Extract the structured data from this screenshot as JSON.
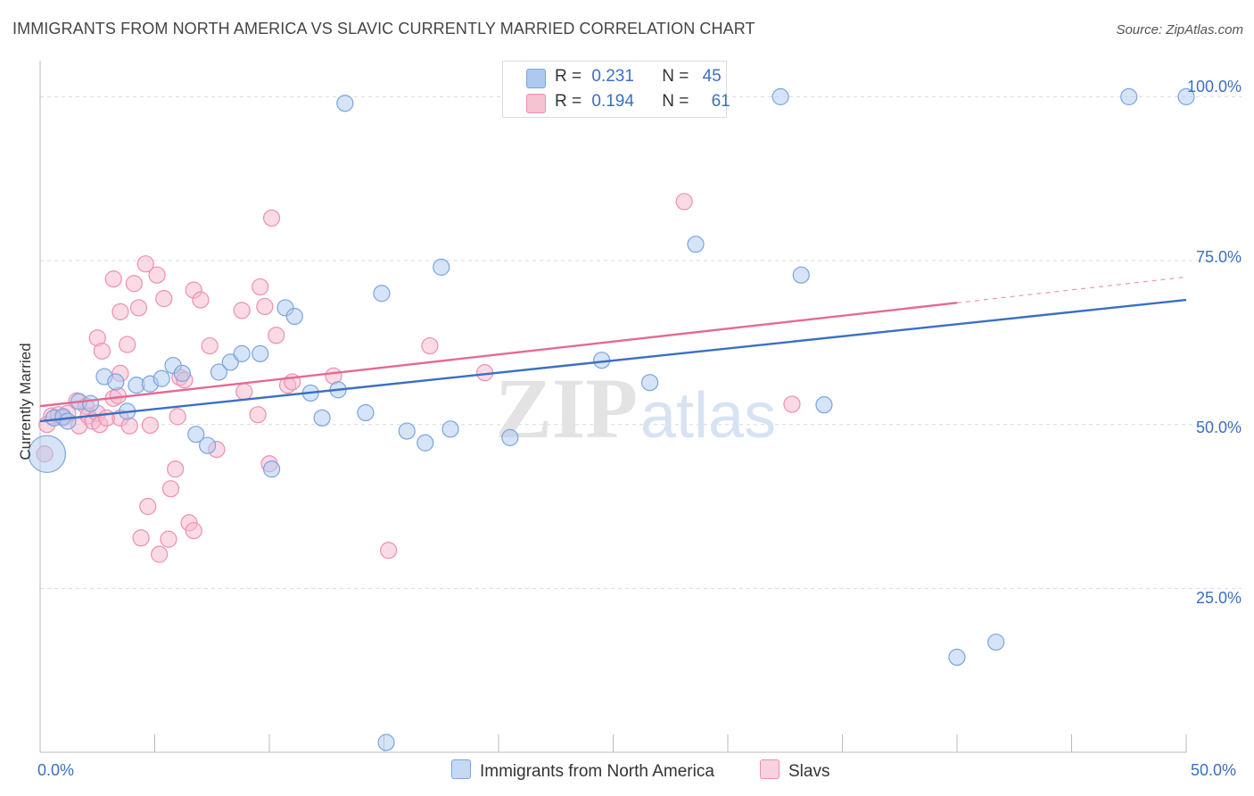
{
  "title": "IMMIGRANTS FROM NORTH AMERICA VS SLAVIC CURRENTLY MARRIED CORRELATION CHART",
  "source": "Source: ZipAtlas.com",
  "watermark": {
    "zip": "ZIP",
    "atlas": "atlas"
  },
  "legend_top": {
    "r_label": "R =",
    "n_label": "N =",
    "blue": {
      "r": "0.231",
      "n": "45"
    },
    "pink": {
      "r": "0.194",
      "n": "61"
    }
  },
  "legend_bottom": {
    "blue": "Immigrants from North America",
    "pink": "Slavs"
  },
  "colors": {
    "blue_fill": "#aec9f0",
    "blue_stroke": "#7aa3e0",
    "blue_line": "#3a6fc4",
    "pink_fill": "#f6b8cb",
    "pink_stroke": "#ee8fae",
    "pink_line": "#e46a95",
    "grid": "#d9d9d9",
    "label_blue": "#3a6fc4"
  },
  "chart_data": {
    "type": "scatter",
    "title": "IMMIGRANTS FROM NORTH AMERICA VS SLAVIC CURRENTLY MARRIED CORRELATION CHART",
    "xlabel": "",
    "ylabel": "Currently Married",
    "xlim": [
      0,
      50
    ],
    "ylim": [
      0,
      104
    ],
    "x_tick_labels": [
      "0.0%",
      "50.0%"
    ],
    "y_tick_labels": [
      "100.0%",
      "75.0%",
      "50.0%",
      "25.0%"
    ],
    "y_ticks": [
      100,
      75,
      50,
      25
    ],
    "series": [
      {
        "name": "Immigrants from North America",
        "color": "blue",
        "r": 0.231,
        "n": 45,
        "trend": {
          "x0": 0,
          "y0": 50.5,
          "x1": 50,
          "y1": 69.0,
          "solid_to": 50
        },
        "points": [
          [
            0.3,
            45.5,
            2.3
          ],
          [
            0.6,
            51,
            1
          ],
          [
            1.0,
            51.2,
            1
          ],
          [
            1.2,
            50.5,
            1
          ],
          [
            1.7,
            53.5,
            1
          ],
          [
            2.2,
            53.2,
            1
          ],
          [
            2.8,
            57.3,
            1
          ],
          [
            3.3,
            56.5,
            1
          ],
          [
            3.8,
            52,
            1
          ],
          [
            4.2,
            56,
            1
          ],
          [
            4.8,
            56.2,
            1
          ],
          [
            5.3,
            57,
            1
          ],
          [
            5.8,
            59,
            1
          ],
          [
            6.2,
            57.8,
            1
          ],
          [
            6.8,
            48.5,
            1
          ],
          [
            7.3,
            46.8,
            1
          ],
          [
            7.8,
            58,
            1
          ],
          [
            8.3,
            59.5,
            1
          ],
          [
            8.8,
            60.8,
            1
          ],
          [
            9.6,
            60.8,
            1
          ],
          [
            10.1,
            43.2,
            1
          ],
          [
            10.7,
            67.8,
            1
          ],
          [
            11.1,
            66.5,
            1
          ],
          [
            11.8,
            54.8,
            1
          ],
          [
            12.3,
            51,
            1
          ],
          [
            13.0,
            55.3,
            1
          ],
          [
            13.3,
            99,
            1
          ],
          [
            14.2,
            51.8,
            1
          ],
          [
            14.9,
            70,
            1
          ],
          [
            15.1,
            1.5,
            1
          ],
          [
            16.0,
            49,
            1
          ],
          [
            16.8,
            47.2,
            1
          ],
          [
            17.5,
            74,
            1
          ],
          [
            17.9,
            49.3,
            1
          ],
          [
            20.5,
            48,
            1
          ],
          [
            24.5,
            59.8,
            1
          ],
          [
            26.6,
            56.4,
            1
          ],
          [
            28.6,
            77.5,
            1
          ],
          [
            32.3,
            100,
            1
          ],
          [
            33.2,
            72.8,
            1
          ],
          [
            34.2,
            53,
            1
          ],
          [
            40.0,
            14.5,
            1
          ],
          [
            41.7,
            16.8,
            1
          ],
          [
            47.5,
            100,
            1
          ],
          [
            50.0,
            100,
            1
          ]
        ]
      },
      {
        "name": "Slavs",
        "color": "pink",
        "r": 0.194,
        "n": 61,
        "trend": {
          "x0": 0,
          "y0": 52.8,
          "x1": 50,
          "y1": 72.5,
          "solid_to": 40
        },
        "points": [
          [
            0.2,
            45.5,
            1
          ],
          [
            0.3,
            50,
            1
          ],
          [
            0.5,
            51.3,
            1
          ],
          [
            0.8,
            51.5,
            1
          ],
          [
            1.0,
            51,
            1
          ],
          [
            1.2,
            51.7,
            1
          ],
          [
            1.6,
            53.6,
            1
          ],
          [
            1.7,
            49.8,
            1
          ],
          [
            2.0,
            52.8,
            1
          ],
          [
            2.1,
            51.3,
            1
          ],
          [
            2.3,
            50.5,
            1
          ],
          [
            2.5,
            51.7,
            1
          ],
          [
            2.6,
            50,
            1
          ],
          [
            2.9,
            51,
            1
          ],
          [
            2.5,
            63.2,
            1
          ],
          [
            2.7,
            61.2,
            1
          ],
          [
            3.2,
            54,
            1
          ],
          [
            3.2,
            72.2,
            1
          ],
          [
            3.4,
            54.4,
            1
          ],
          [
            3.5,
            57.8,
            1
          ],
          [
            3.5,
            51,
            1
          ],
          [
            3.5,
            67.2,
            1
          ],
          [
            3.8,
            62.2,
            1
          ],
          [
            3.9,
            49.8,
            1
          ],
          [
            4.1,
            71.5,
            1
          ],
          [
            4.3,
            67.8,
            1
          ],
          [
            4.4,
            32.7,
            1
          ],
          [
            4.6,
            74.5,
            1
          ],
          [
            4.7,
            37.5,
            1
          ],
          [
            4.8,
            49.9,
            1
          ],
          [
            5.1,
            72.8,
            1
          ],
          [
            5.2,
            30.2,
            1
          ],
          [
            5.4,
            69.2,
            1
          ],
          [
            5.6,
            32.5,
            1
          ],
          [
            5.7,
            40.2,
            1
          ],
          [
            5.9,
            43.2,
            1
          ],
          [
            6.0,
            51.2,
            1
          ],
          [
            6.1,
            57.2,
            1
          ],
          [
            6.3,
            56.8,
            1
          ],
          [
            6.5,
            35,
            1
          ],
          [
            6.7,
            33.8,
            1
          ],
          [
            6.7,
            70.5,
            1
          ],
          [
            7.0,
            69,
            1
          ],
          [
            7.4,
            62,
            1
          ],
          [
            7.7,
            46.2,
            1
          ],
          [
            8.8,
            67.4,
            1
          ],
          [
            8.9,
            55,
            1
          ],
          [
            9.5,
            51.5,
            1
          ],
          [
            9.6,
            71,
            1
          ],
          [
            9.8,
            68,
            1
          ],
          [
            10.0,
            44,
            1
          ],
          [
            10.1,
            81.5,
            1
          ],
          [
            10.3,
            63.6,
            1
          ],
          [
            10.8,
            56,
            1
          ],
          [
            11.0,
            56.5,
            1
          ],
          [
            12.8,
            57.4,
            1
          ],
          [
            15.2,
            30.8,
            1
          ],
          [
            17.0,
            62,
            1
          ],
          [
            19.4,
            57.9,
            1
          ],
          [
            28.1,
            84,
            1
          ],
          [
            32.8,
            53.1,
            1
          ]
        ]
      }
    ]
  }
}
